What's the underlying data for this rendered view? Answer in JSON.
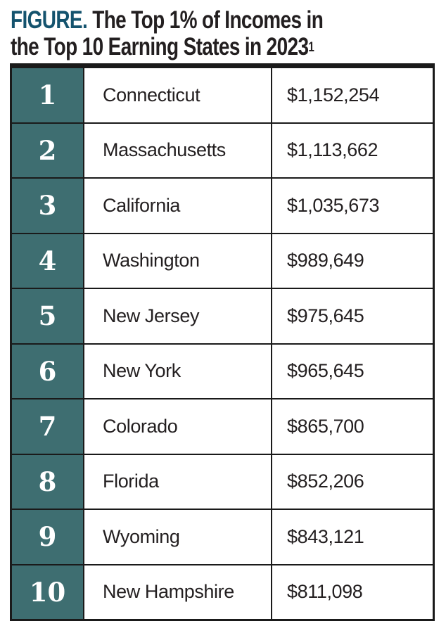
{
  "figure": {
    "label": "FIGURE.",
    "title_line1": "The Top 1% of Incomes in",
    "title_line2": "the Top 10 Earning States in 2023",
    "footnote_marker": "1"
  },
  "colors": {
    "rank_cell_teal": "#3e6e71",
    "figure_label_blue": "#14536e",
    "border_black": "#1a1a1a",
    "rank_text_white": "#ffffff",
    "body_text": "#231f20"
  },
  "chart_data": {
    "type": "table",
    "title": "FIGURE. The Top 1% of Incomes in the Top 10 Earning States in 2023",
    "categories": [
      "Connecticut",
      "Massachusetts",
      "California",
      "Washington",
      "New Jersey",
      "New York",
      "Colorado",
      "Florida",
      "Wyoming",
      "New Hampshire"
    ],
    "ranks": [
      1,
      2,
      3,
      4,
      5,
      6,
      7,
      8,
      9,
      10
    ],
    "values": [
      1152254,
      1113662,
      1035673,
      989649,
      975645,
      965645,
      865700,
      852206,
      843121,
      811098
    ],
    "value_labels": [
      "$1,152,254",
      "$1,113,662",
      "$1,035,673",
      "$989,649",
      "$975,645",
      "$965,645",
      "$865,700",
      "$852,206",
      "$843,121",
      "$811,098"
    ]
  },
  "table": {
    "rows": [
      {
        "rank": "1",
        "state": "Connecticut",
        "value": "$1,152,254"
      },
      {
        "rank": "2",
        "state": "Massachusetts",
        "value": "$1,113,662"
      },
      {
        "rank": "3",
        "state": "California",
        "value": "$1,035,673"
      },
      {
        "rank": "4",
        "state": "Washington",
        "value": "$989,649"
      },
      {
        "rank": "5",
        "state": "New Jersey",
        "value": "$975,645"
      },
      {
        "rank": "6",
        "state": "New York",
        "value": "$965,645"
      },
      {
        "rank": "7",
        "state": "Colorado",
        "value": "$865,700"
      },
      {
        "rank": "8",
        "state": "Florida",
        "value": "$852,206"
      },
      {
        "rank": "9",
        "state": "Wyoming",
        "value": "$843,121"
      },
      {
        "rank": "10",
        "state": "New Hampshire",
        "value": "$811,098"
      }
    ]
  }
}
